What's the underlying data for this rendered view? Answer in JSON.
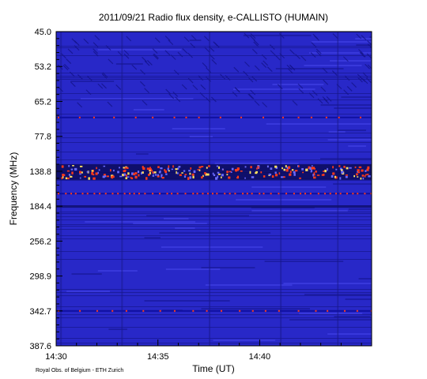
{
  "title": "2011/09/21  Radio flux density, e-CALLISTO (HUMAIN)",
  "credit": "Royal Obs. of Belgium - ETH Zurich",
  "colors": {
    "background": "#2828c8",
    "deep": "#0a0a5a",
    "hot": "#ff3a1a",
    "hottest": "#ffe060"
  },
  "chart_data": {
    "type": "heatmap",
    "title": "2011/09/21  Radio flux density, e-CALLISTO (HUMAIN)",
    "xlabel": "Time (UT)",
    "ylabel": "Frequency (MHz)",
    "x_ticks": [
      "14:30",
      "14:35",
      "14:40"
    ],
    "x_tick_minutes": [
      0,
      5,
      10
    ],
    "xlim_minutes": [
      0,
      15.5
    ],
    "y_ticks": [
      "45.0",
      "53.2",
      "65.2",
      "77.8",
      "138.8",
      "184.4",
      "256.2",
      "298.9",
      "342.7",
      "387.6"
    ],
    "y_tick_values": [
      45.0,
      53.2,
      65.2,
      77.8,
      138.8,
      184.4,
      256.2,
      298.9,
      342.7,
      387.6
    ],
    "y_direction": "frequency increases downward",
    "emission_bands": [
      {
        "label": "intermittent spikes",
        "frequency_mhz": 71.0,
        "strength": 0.55
      },
      {
        "label": "strong interference band",
        "frequency_mhz": 138.8,
        "strength": 1.0
      },
      {
        "label": "persistent line",
        "frequency_mhz": 168.0,
        "strength": 0.7
      },
      {
        "label": "intermittent spikes",
        "frequency_mhz": 342.7,
        "strength": 0.55
      }
    ],
    "grid": false,
    "legend": "none"
  }
}
